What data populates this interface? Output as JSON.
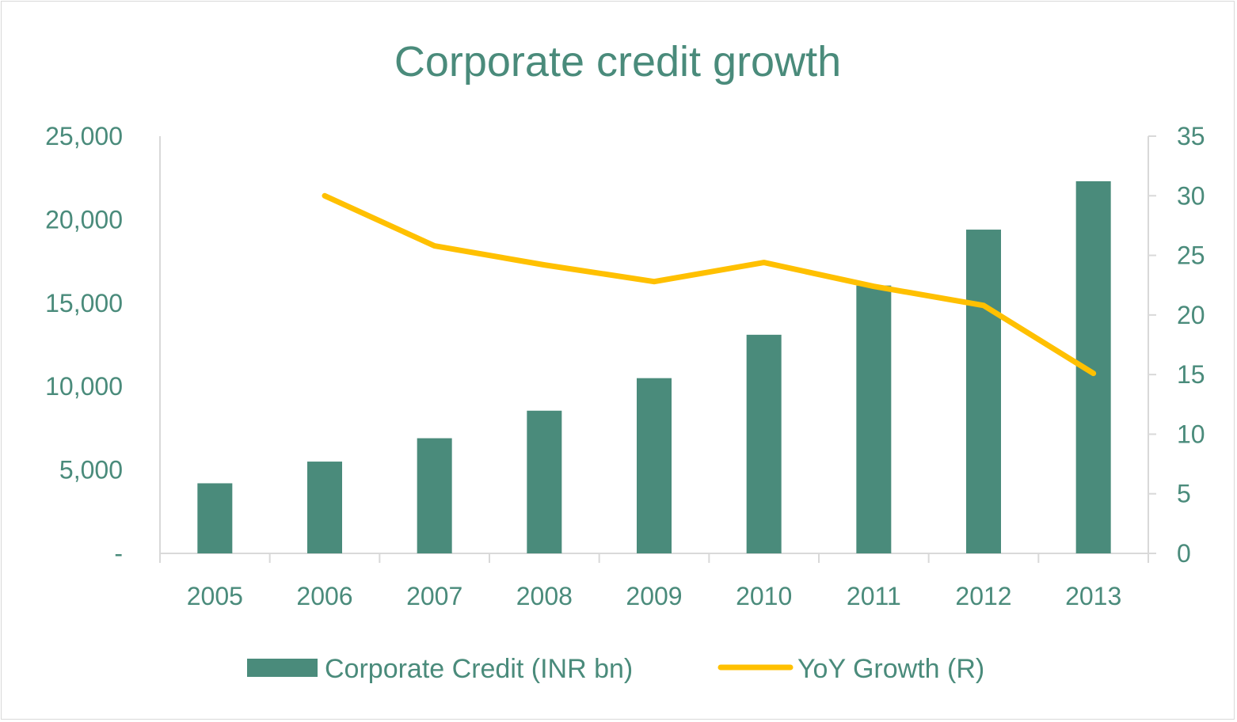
{
  "chart_data": {
    "type": "bar",
    "title": "Corporate credit growth",
    "categories": [
      "2005",
      "2006",
      "2007",
      "2008",
      "2009",
      "2010",
      "2011",
      "2012",
      "2013"
    ],
    "series": [
      {
        "name": "Corporate Credit (INR bn)",
        "type": "bar",
        "axis": "left",
        "color": "#4a8b7b",
        "values": [
          4200,
          5500,
          6900,
          8550,
          10500,
          13100,
          16050,
          19400,
          22300
        ]
      },
      {
        "name": "YoY Growth (R)",
        "type": "line",
        "axis": "right",
        "color": "#ffc000",
        "values": [
          null,
          30.0,
          25.8,
          24.2,
          22.8,
          24.4,
          22.4,
          20.8,
          15.1
        ]
      }
    ],
    "y_left": {
      "min": 0,
      "max": 25000,
      "ticks": [
        0,
        5000,
        10000,
        15000,
        20000,
        25000
      ],
      "tick_labels": [
        "-",
        "5,000",
        "10,000",
        "15,000",
        "20,000",
        "25,000"
      ]
    },
    "y_right": {
      "min": 0,
      "max": 35,
      "ticks": [
        0,
        5,
        10,
        15,
        20,
        25,
        30,
        35
      ],
      "tick_labels": [
        "0",
        "5",
        "10",
        "15",
        "20",
        "25",
        "30",
        "35"
      ]
    },
    "grid": false,
    "legend_position": "bottom"
  }
}
